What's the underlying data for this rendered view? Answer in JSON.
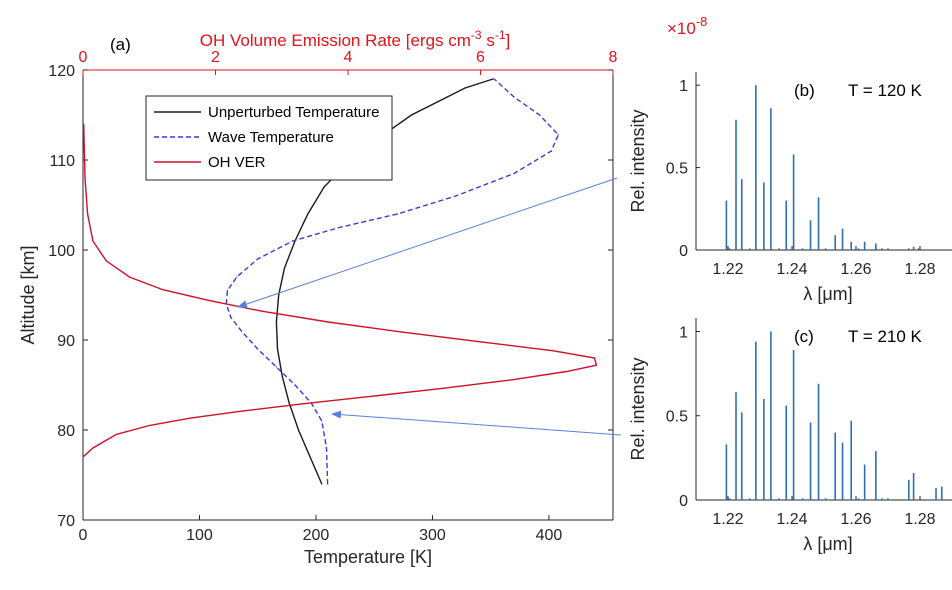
{
  "colors": {
    "unperturbed": "#1a1a1a",
    "wave": "#3b3bd6",
    "ohver": "#d0102a",
    "topaxis": "#e8101a",
    "arrow": "#5a7fe0",
    "stick": "#2f6fb0",
    "axis": "#262626"
  },
  "chart_data": [
    {
      "id": "a",
      "type": "line",
      "panel_label": "(a)",
      "xlabel": "Temperature [K]",
      "ylabel": "Altitude [km]",
      "top_xlabel": "OH Volume Emission Rate [ergs cm",
      "top_xlabel_exp1": "-3",
      "top_xlabel_mid": " s",
      "top_xlabel_exp2": "-1",
      "top_xlabel_end": "]",
      "xlim": [
        0,
        455
      ],
      "ylim": [
        70,
        120
      ],
      "top_xlim": [
        0,
        8
      ],
      "xticks": [
        0,
        100,
        200,
        300,
        400
      ],
      "yticks": [
        70,
        80,
        90,
        100,
        110,
        120
      ],
      "top_xticks": [
        0,
        2,
        4,
        6,
        8
      ],
      "legend": {
        "placement": "upper-left",
        "entries": [
          "Unperturbed Temperature",
          "Wave Temperature",
          "OH VER"
        ]
      },
      "series": [
        {
          "name": "Unperturbed Temperature",
          "style": "solid",
          "x": [
            205,
            195,
            185,
            177,
            171,
            167,
            166,
            168,
            173,
            182,
            193,
            207,
            222,
            240,
            260,
            282,
            305,
            328,
            352
          ],
          "y": [
            74,
            77,
            80,
            83,
            86,
            89,
            92,
            95,
            98,
            101,
            104,
            107,
            109,
            111,
            113,
            115,
            116.5,
            118,
            119
          ]
        },
        {
          "name": "Wave Temperature",
          "style": "dashed",
          "x": [
            210,
            209,
            205,
            196,
            182,
            166,
            150,
            136,
            127,
            123,
            124,
            132,
            150,
            180,
            220,
            270,
            320,
            370,
            402,
            408,
            392,
            370,
            353
          ],
          "y": [
            74,
            78,
            81,
            83,
            85,
            87,
            89,
            91,
            92.5,
            94,
            95.5,
            97,
            99,
            101,
            102.5,
            104,
            106,
            108.5,
            111,
            112.8,
            115,
            117,
            119
          ]
        },
        {
          "name": "OH VER",
          "style": "solid",
          "axis": "top",
          "x": [
            0,
            0.15,
            0.5,
            1.0,
            1.6,
            2.4,
            3.3,
            4.3,
            5.4,
            6.5,
            7.3,
            7.75,
            7.72,
            7.1,
            6.0,
            4.8,
            3.7,
            2.7,
            1.9,
            1.2,
            0.7,
            0.35,
            0.15,
            0.07,
            0.03,
            0.01
          ],
          "y": [
            77,
            78,
            79.5,
            80.5,
            81.3,
            82.1,
            82.9,
            83.7,
            84.6,
            85.6,
            86.5,
            87.2,
            88,
            88.8,
            89.8,
            90.9,
            92,
            93.2,
            94.4,
            95.6,
            97,
            98.8,
            101,
            104,
            108,
            114
          ]
        }
      ]
    },
    {
      "id": "b",
      "type": "bar",
      "panel_label": "(b)",
      "annotation": "T = 120 K",
      "multiplier": "×10",
      "multiplier_exp": "-8",
      "xlabel": "λ [μm]",
      "ylabel": "Rel. intensity",
      "xlim": [
        1.21,
        1.29
      ],
      "ylim": [
        0,
        1.08
      ],
      "xticks": [
        1.22,
        1.24,
        1.26,
        1.28
      ],
      "yticks": [
        0,
        0.5,
        1
      ],
      "ytick_labels": [
        "0",
        "0.5",
        "1"
      ],
      "x": [
        1.2195,
        1.2205,
        1.2225,
        1.2243,
        1.2268,
        1.2287,
        1.2312,
        1.2334,
        1.2359,
        1.2382,
        1.2405,
        1.2433,
        1.2458,
        1.2483,
        1.2505,
        1.2535,
        1.2558,
        1.2585,
        1.2608,
        1.2627,
        1.2662,
        1.2681,
        1.27,
        1.2765,
        1.278,
        1.2795
      ],
      "values": [
        0.3,
        0.01,
        0.79,
        0.43,
        0.01,
        1.0,
        0.41,
        0.86,
        0.01,
        0.3,
        0.58,
        0.01,
        0.18,
        0.32,
        0.01,
        0.09,
        0.13,
        0.05,
        0.01,
        0.05,
        0.04,
        0.01,
        0.01,
        0.01,
        0.02,
        0.01
      ]
    },
    {
      "id": "c",
      "type": "bar",
      "panel_label": "(c)",
      "annotation": "T = 210 K",
      "xlabel": "λ [μm]",
      "ylabel": "Rel. intensity",
      "xlim": [
        1.21,
        1.29
      ],
      "ylim": [
        0,
        1.08
      ],
      "xticks": [
        1.22,
        1.24,
        1.26,
        1.28
      ],
      "yticks": [
        0,
        0.5,
        1
      ],
      "ytick_labels": [
        "0",
        "0.5",
        "1"
      ],
      "x": [
        1.2195,
        1.2205,
        1.2225,
        1.2243,
        1.2268,
        1.2287,
        1.2312,
        1.2334,
        1.2359,
        1.2382,
        1.2405,
        1.2433,
        1.2458,
        1.2483,
        1.2505,
        1.2535,
        1.2558,
        1.2585,
        1.2608,
        1.2627,
        1.2662,
        1.2681,
        1.27,
        1.2765,
        1.278,
        1.285,
        1.2868
      ],
      "values": [
        0.33,
        0.01,
        0.64,
        0.52,
        0.01,
        0.94,
        0.6,
        1.0,
        0.01,
        0.56,
        0.89,
        0.01,
        0.46,
        0.69,
        0.01,
        0.4,
        0.34,
        0.47,
        0.01,
        0.21,
        0.29,
        0.01,
        0.01,
        0.12,
        0.16,
        0.07,
        0.08
      ]
    }
  ]
}
